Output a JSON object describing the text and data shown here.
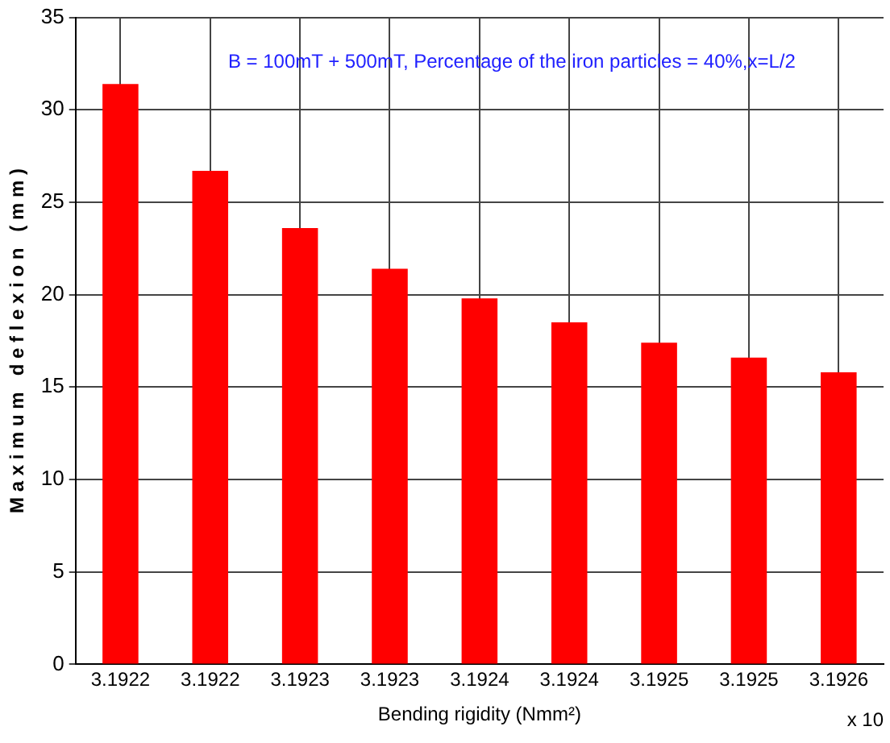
{
  "chart_data": {
    "type": "bar",
    "xlabel": "Bending rigidity (Nmm²)",
    "ylabel": "M a x i m u m   d e f l e x i o n   ( m m )",
    "categories": [
      "3.1922",
      "3.1922",
      "3.1923",
      "3.1923",
      "3.1924",
      "3.1924",
      "3.1925",
      "3.1925",
      "3.1926"
    ],
    "values": [
      31.4,
      26.7,
      23.6,
      21.4,
      19.8,
      18.5,
      17.4,
      16.6,
      15.8
    ],
    "color": "#ff0000",
    "ylim": [
      0,
      35
    ],
    "yticks": [
      0,
      5,
      10,
      15,
      20,
      25,
      30,
      35
    ],
    "grid": true,
    "legend": false,
    "annotations": [
      "B = 100mT + 500mT, Percentage of the iron particles = 40%,x=L/2",
      "x 10"
    ]
  }
}
